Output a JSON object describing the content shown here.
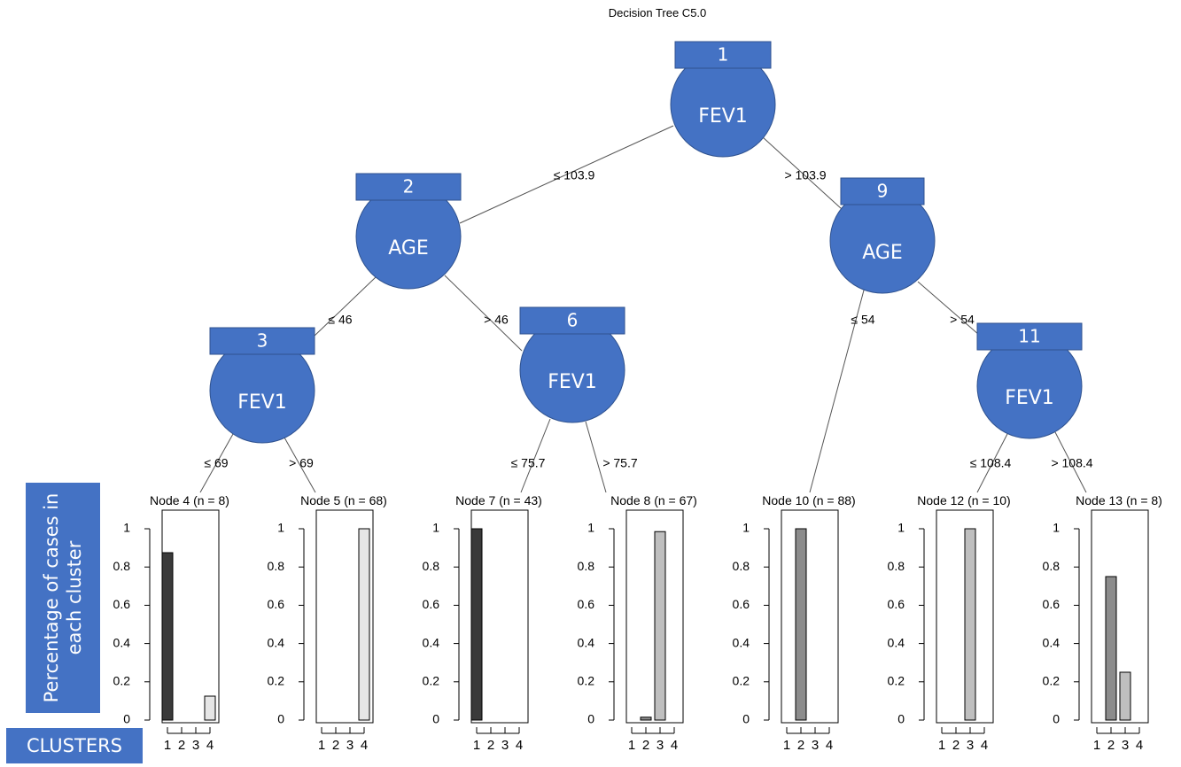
{
  "title": "Decision Tree C5.0",
  "y_axis_label": "Percentage of cases in each cluster",
  "x_axis_label": "CLUSTERS",
  "colors": {
    "node_fill": "#4472c4",
    "node_stroke": "#2f528f",
    "cluster_1": "#3a3a3a",
    "cluster_2": "#8c8c8c",
    "cluster_3": "#bfbfbf",
    "cluster_4": "#e6e6e6"
  },
  "inner_nodes": [
    {
      "id": "1",
      "variable": "FEV1"
    },
    {
      "id": "2",
      "variable": "AGE"
    },
    {
      "id": "3",
      "variable": "FEV1"
    },
    {
      "id": "6",
      "variable": "FEV1"
    },
    {
      "id": "9",
      "variable": "AGE"
    },
    {
      "id": "11",
      "variable": "FEV1"
    }
  ],
  "edges": [
    {
      "from": "1",
      "to": "2",
      "label": "≤ 103.9"
    },
    {
      "from": "1",
      "to": "9",
      "label": "> 103.9"
    },
    {
      "from": "2",
      "to": "3",
      "label": "≤ 46"
    },
    {
      "from": "2",
      "to": "6",
      "label": "> 46"
    },
    {
      "from": "3",
      "to": "4",
      "label": "≤ 69"
    },
    {
      "from": "3",
      "to": "5",
      "label": "> 69"
    },
    {
      "from": "6",
      "to": "7",
      "label": "≤ 75.7"
    },
    {
      "from": "6",
      "to": "8",
      "label": "> 75.7"
    },
    {
      "from": "9",
      "to": "10",
      "label": "≤ 54"
    },
    {
      "from": "9",
      "to": "11",
      "label": "> 54"
    },
    {
      "from": "11",
      "to": "12",
      "label": "≤ 108.4"
    },
    {
      "from": "11",
      "to": "13",
      "label": "> 108.4"
    }
  ],
  "chart_data": {
    "type": "bar",
    "categories": [
      "1",
      "2",
      "3",
      "4"
    ],
    "ylim": [
      0,
      1
    ],
    "yticks": [
      "0",
      "0.2",
      "0.4",
      "0.6",
      "0.8",
      "1"
    ],
    "terminal_nodes": [
      {
        "id": "4",
        "title": "Node 4 (n = 8)",
        "values": [
          0.875,
          0,
          0,
          0.125
        ]
      },
      {
        "id": "5",
        "title": "Node 5 (n = 68)",
        "values": [
          0,
          0,
          0,
          1
        ]
      },
      {
        "id": "7",
        "title": "Node 7 (n = 43)",
        "values": [
          1,
          0,
          0,
          0
        ]
      },
      {
        "id": "8",
        "title": "Node 8 (n = 67)",
        "values": [
          0,
          0.015,
          0.985,
          0
        ]
      },
      {
        "id": "10",
        "title": "Node 10 (n = 88)",
        "values": [
          0,
          1,
          0,
          0
        ]
      },
      {
        "id": "12",
        "title": "Node 12 (n = 10)",
        "values": [
          0,
          0,
          1,
          0
        ]
      },
      {
        "id": "13",
        "title": "Node 13 (n = 8)",
        "values": [
          0,
          0.75,
          0.25,
          0
        ]
      }
    ]
  }
}
